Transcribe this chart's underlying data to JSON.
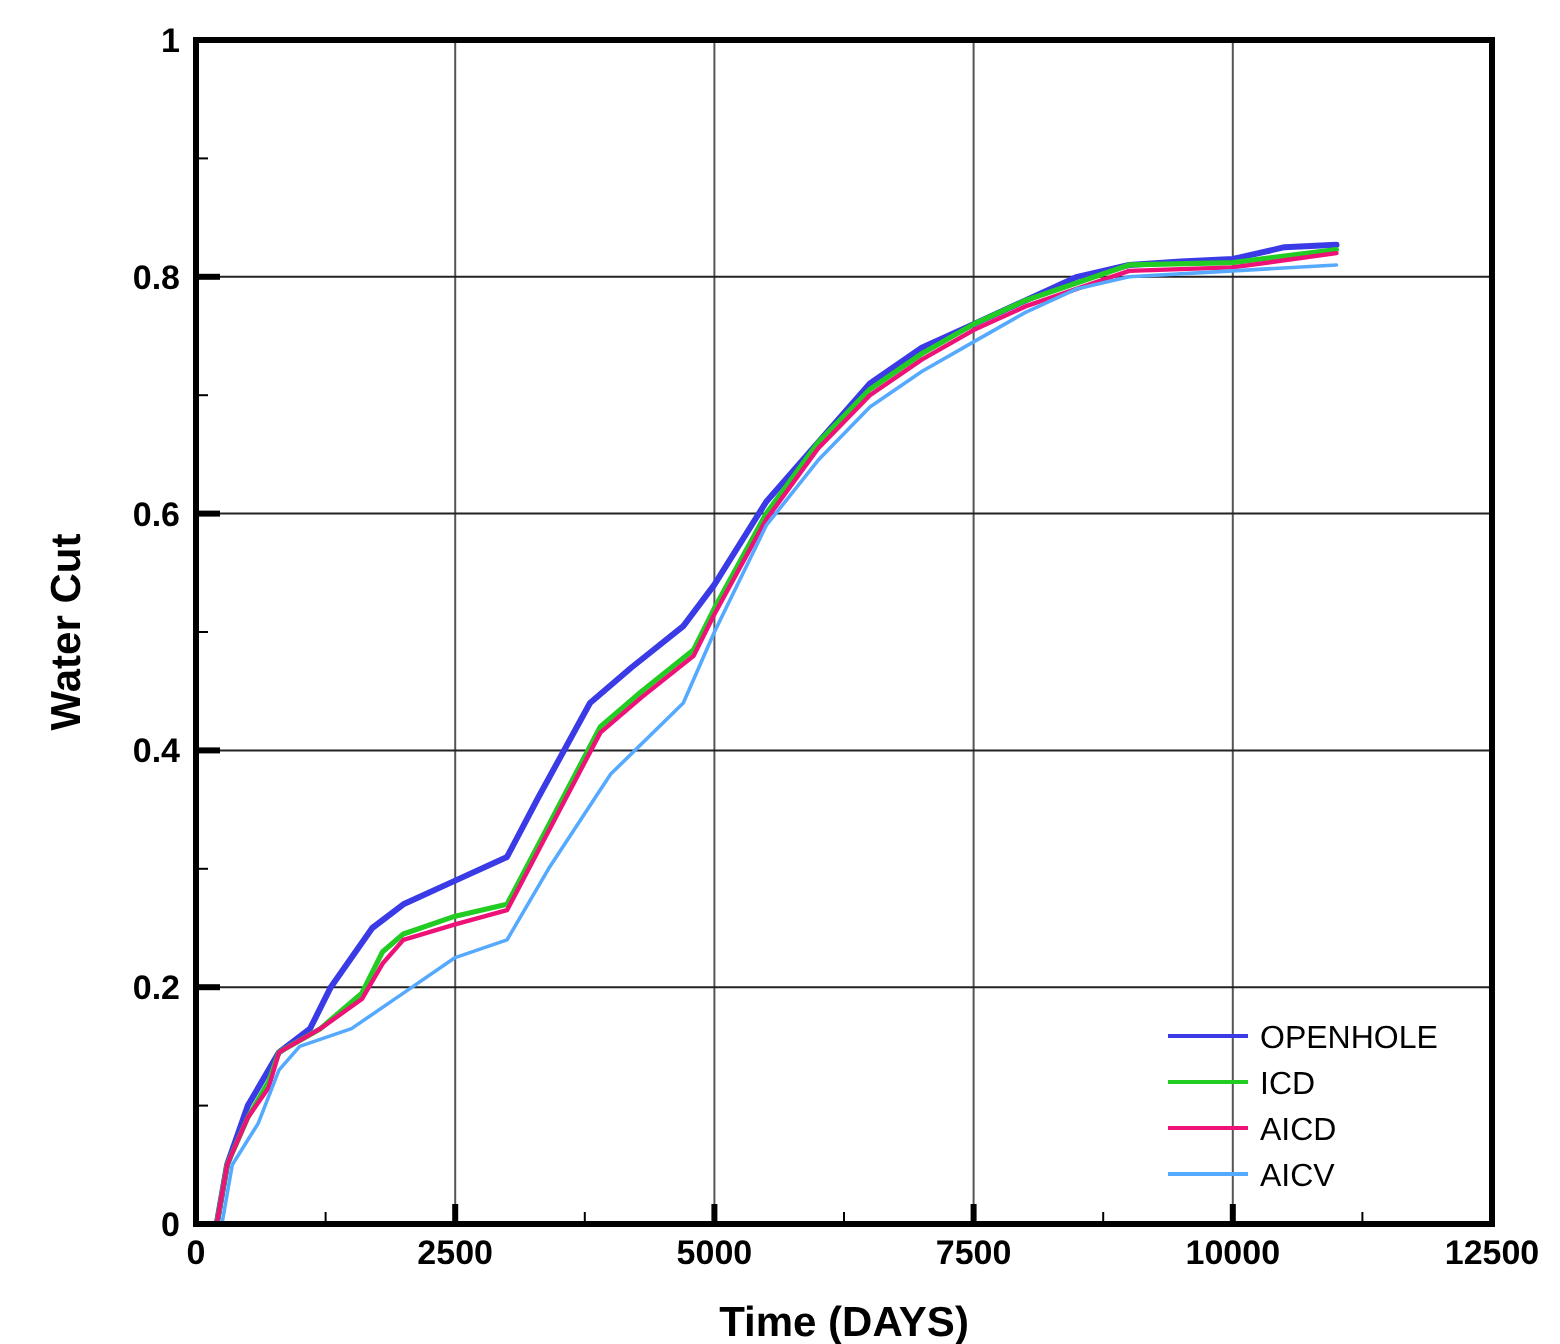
{
  "chart_data": {
    "type": "line",
    "xlabel": "Time (DAYS)",
    "ylabel": "Water Cut",
    "xlim": [
      0,
      12500
    ],
    "ylim": [
      0,
      1
    ],
    "xticks": [
      0,
      {
        "value": 1250,
        "label": null
      },
      2500,
      {
        "value": 3750,
        "label": null
      },
      5000,
      {
        "value": 6250,
        "label": null
      },
      7500,
      {
        "value": 8750,
        "label": null
      },
      10000,
      {
        "value": 11250,
        "label": null
      },
      12500
    ],
    "yticks": [
      0,
      {
        "value": 0.1,
        "label": null
      },
      0.2,
      {
        "value": 0.3,
        "label": null
      },
      0.4,
      {
        "value": 0.5,
        "label": null
      },
      0.6,
      {
        "value": 0.7,
        "label": null
      },
      0.8,
      {
        "value": 0.9,
        "label": null
      },
      1
    ],
    "grid": true,
    "legend": "bottom right",
    "line_style": "solid",
    "series": [
      {
        "name": "OPENHOLE",
        "color": "#3a3ae6",
        "x": [
          200,
          300,
          500,
          800,
          1100,
          1300,
          1700,
          2000,
          2500,
          3000,
          3300,
          3800,
          4200,
          4700,
          5000,
          5500,
          6000,
          6500,
          7000,
          7500,
          8000,
          8500,
          9000,
          9500,
          10000,
          10500,
          11000
        ],
        "values": [
          0,
          0.05,
          0.1,
          0.145,
          0.165,
          0.2,
          0.25,
          0.27,
          0.29,
          0.31,
          0.36,
          0.44,
          0.47,
          0.505,
          0.54,
          0.61,
          0.66,
          0.71,
          0.74,
          0.76,
          0.78,
          0.8,
          0.81,
          0.813,
          0.815,
          0.825,
          0.827
        ]
      },
      {
        "name": "ICD",
        "color": "#22cc22",
        "x": [
          200,
          300,
          500,
          700,
          800,
          1200,
          1600,
          1800,
          2000,
          2500,
          3000,
          3300,
          3900,
          4300,
          4800,
          5000,
          5500,
          6000,
          6500,
          7000,
          7500,
          8000,
          8500,
          9000,
          10000,
          11000
        ],
        "values": [
          0,
          0.05,
          0.09,
          0.12,
          0.145,
          0.165,
          0.195,
          0.23,
          0.245,
          0.26,
          0.27,
          0.32,
          0.42,
          0.45,
          0.485,
          0.52,
          0.6,
          0.66,
          0.705,
          0.735,
          0.76,
          0.78,
          0.795,
          0.81,
          0.812,
          0.823
        ]
      },
      {
        "name": "AICD",
        "color": "#ee1177",
        "x": [
          200,
          300,
          500,
          700,
          800,
          1200,
          1600,
          1800,
          2000,
          2500,
          3000,
          3300,
          3900,
          4300,
          4800,
          5000,
          5500,
          6000,
          6500,
          7000,
          7500,
          8000,
          8500,
          9000,
          10000,
          11000
        ],
        "values": [
          0,
          0.05,
          0.09,
          0.115,
          0.145,
          0.165,
          0.19,
          0.22,
          0.24,
          0.253,
          0.265,
          0.315,
          0.415,
          0.445,
          0.48,
          0.515,
          0.595,
          0.655,
          0.7,
          0.73,
          0.755,
          0.775,
          0.79,
          0.805,
          0.808,
          0.82
        ]
      },
      {
        "name": "AICV",
        "color": "#55aaff",
        "x": [
          250,
          350,
          600,
          800,
          1000,
          1500,
          2000,
          2500,
          3000,
          3400,
          4000,
          4700,
          5000,
          5500,
          6000,
          6500,
          7000,
          7500,
          8000,
          8500,
          9000,
          10000,
          11000
        ],
        "values": [
          0,
          0.05,
          0.085,
          0.13,
          0.15,
          0.165,
          0.195,
          0.225,
          0.24,
          0.3,
          0.38,
          0.44,
          0.5,
          0.59,
          0.645,
          0.69,
          0.72,
          0.745,
          0.77,
          0.79,
          0.8,
          0.805,
          0.81
        ]
      }
    ]
  }
}
